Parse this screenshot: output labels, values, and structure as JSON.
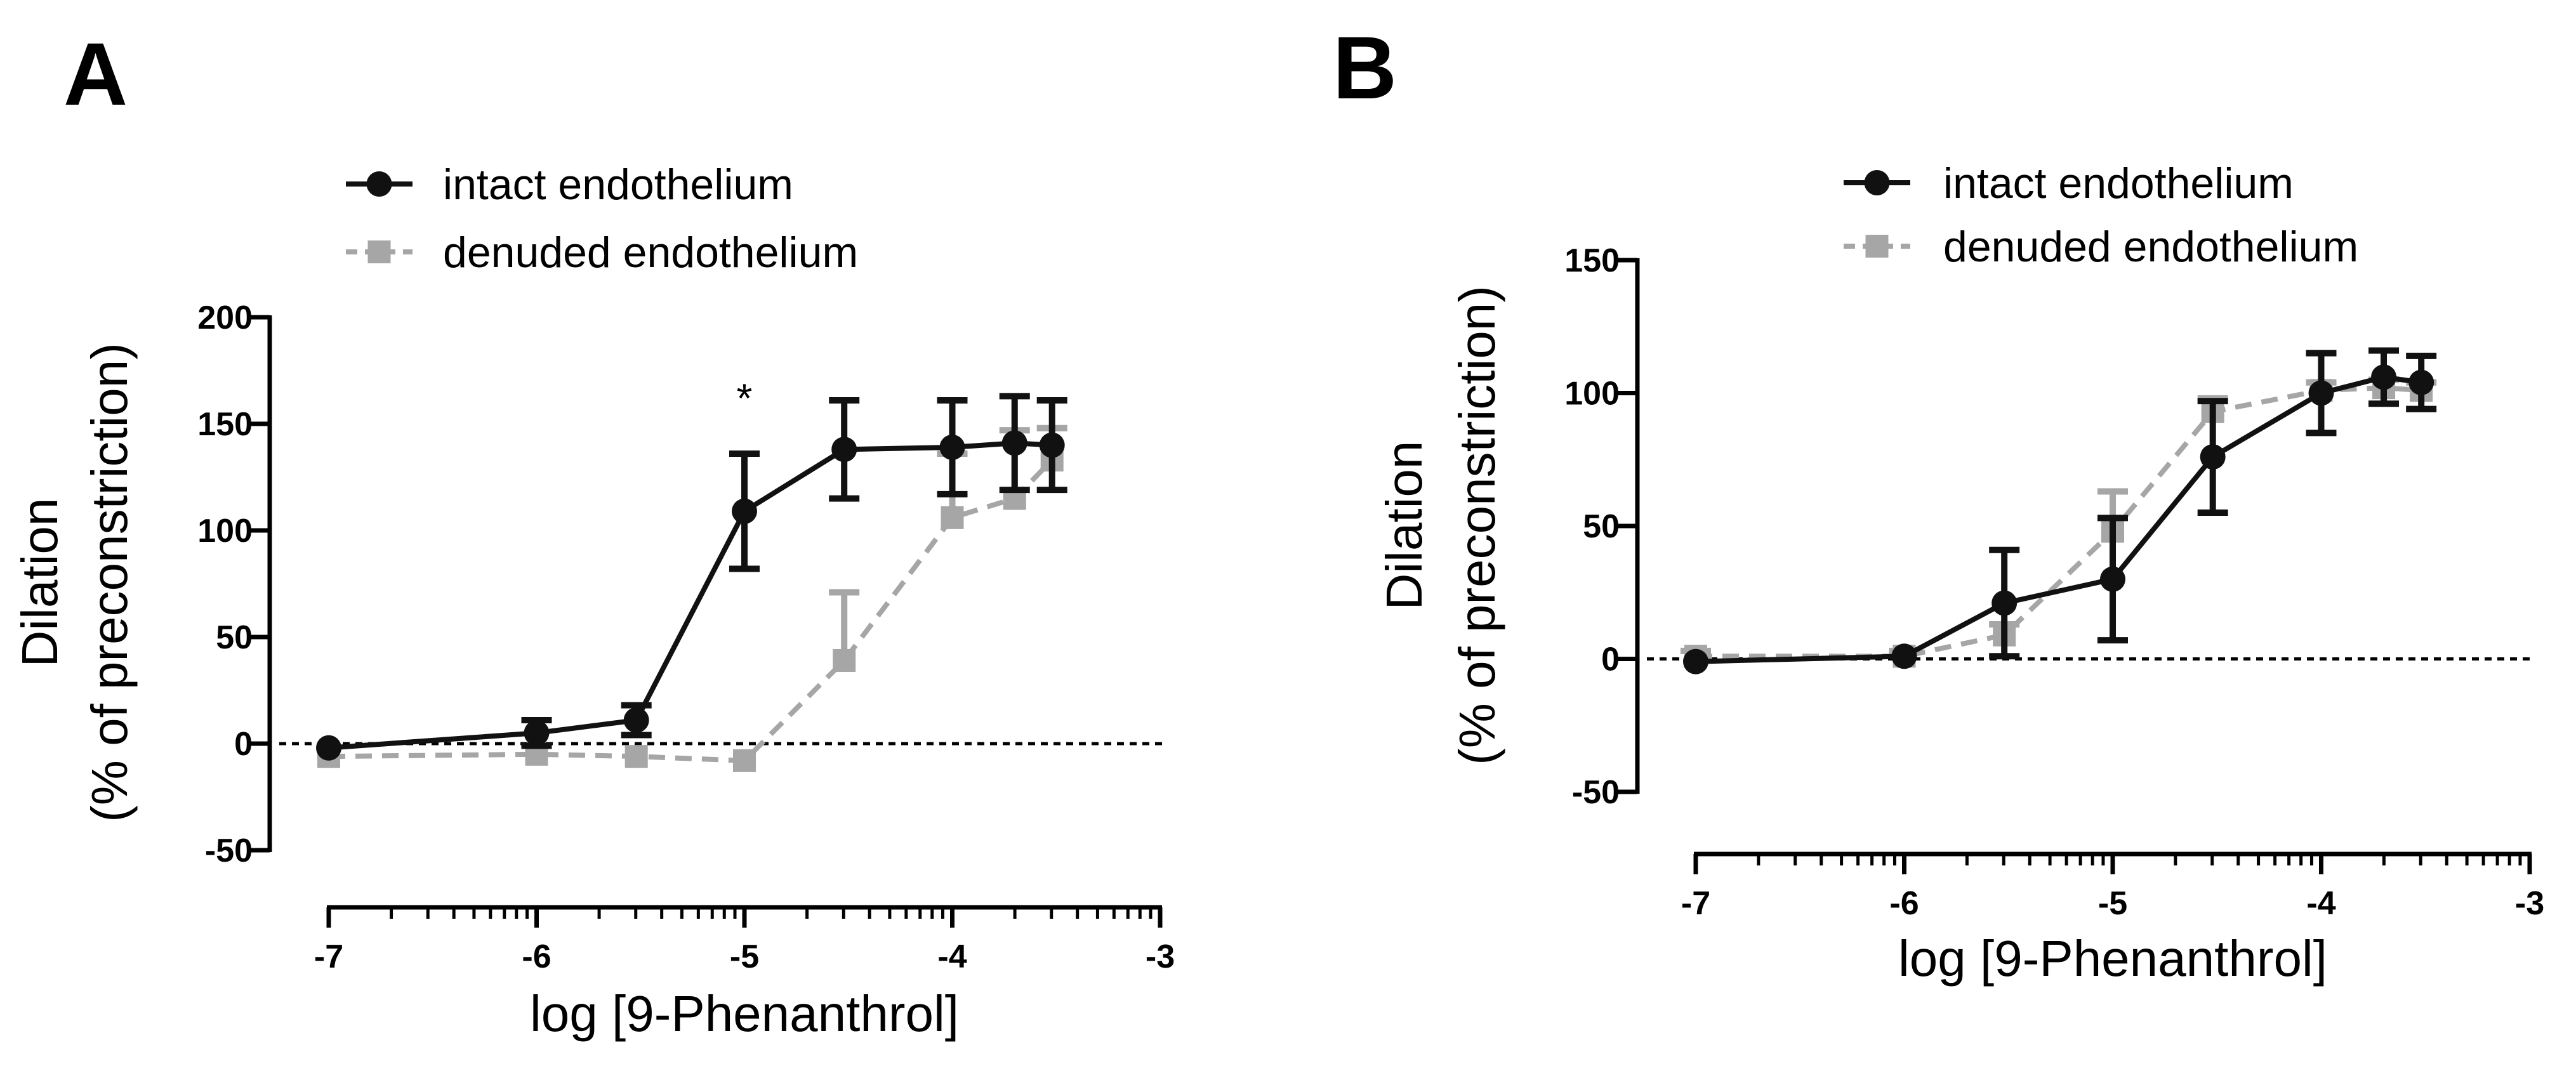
{
  "chart_data": [
    {
      "panel": "A",
      "type": "line",
      "xlabel": "log [9-Phenanthrol]",
      "ylabel": "Dilation",
      "ylabel2": "(% of preconstriction)",
      "xlim": [
        -7,
        -3
      ],
      "ylim": [
        -50,
        200
      ],
      "xticks": [
        -7,
        -6,
        -5,
        -4,
        -3
      ],
      "xtick_labels": [
        "-7",
        "-6",
        "-5",
        "-4",
        "-3"
      ],
      "yticks": [
        -50,
        0,
        50,
        100,
        150,
        200
      ],
      "ytick_labels": [
        "-50",
        "0",
        "50",
        "100",
        "150",
        "200"
      ],
      "legend_position": "top",
      "reference_line": 0,
      "annotations": [
        {
          "text": "*",
          "x": -5,
          "y": 162
        }
      ],
      "series": [
        {
          "name": "intact endothelium",
          "color": "#111111",
          "marker": "circle",
          "linestyle": "solid",
          "x": [
            -7,
            -6,
            -5.52,
            -5,
            -4.52,
            -4,
            -3.7,
            -3.52
          ],
          "y": [
            -2,
            5,
            11,
            109,
            138,
            139,
            141,
            140
          ],
          "err": [
            0,
            6,
            7,
            27,
            23,
            22,
            22,
            21
          ]
        },
        {
          "name": "denuded endothelium",
          "color": "#a6a6a6",
          "marker": "square",
          "linestyle": "dashed",
          "x": [
            -7,
            -6,
            -5.52,
            -5,
            -4.52,
            -4,
            -3.7,
            -3.52
          ],
          "y": [
            -6,
            -5,
            -6,
            -8,
            39,
            106,
            115,
            133
          ],
          "err": [
            0,
            0,
            0,
            0,
            32,
            30,
            32,
            15
          ]
        }
      ]
    },
    {
      "panel": "B",
      "type": "line",
      "xlabel": "log [9-Phenanthrol]",
      "ylabel": "Dilation",
      "ylabel2": "(% of preconstriction)",
      "xlim": [
        -7,
        -3
      ],
      "ylim": [
        -50,
        150
      ],
      "xticks": [
        -7,
        -6,
        -5,
        -4,
        -3
      ],
      "xtick_labels": [
        "-7",
        "-6",
        "-5",
        "-4",
        "-3"
      ],
      "yticks": [
        -50,
        0,
        50,
        100,
        150
      ],
      "ytick_labels": [
        "-50",
        "0",
        "50",
        "100",
        "150"
      ],
      "legend_position": "top",
      "reference_line": 0,
      "annotations": [],
      "series": [
        {
          "name": "intact endothelium",
          "color": "#111111",
          "marker": "circle",
          "linestyle": "solid",
          "x": [
            -7,
            -6,
            -5.52,
            -5,
            -4.52,
            -4,
            -3.7,
            -3.52
          ],
          "y": [
            -1,
            1,
            21,
            30,
            76,
            100,
            106,
            104
          ],
          "err": [
            0,
            0,
            20,
            23,
            21,
            15,
            10,
            10
          ]
        },
        {
          "name": "denuded endothelium",
          "color": "#a6a6a6",
          "marker": "square",
          "linestyle": "dashed",
          "x": [
            -7,
            -6,
            -5.52,
            -5,
            -4.52,
            -4,
            -3.7,
            -3.52
          ],
          "y": [
            1,
            1,
            9,
            48,
            93,
            101,
            102,
            101
          ],
          "err": [
            2,
            2,
            4,
            15,
            5,
            3,
            3,
            3
          ]
        }
      ]
    }
  ],
  "panels": [
    {
      "letter": "A"
    },
    {
      "letter": "B"
    }
  ]
}
